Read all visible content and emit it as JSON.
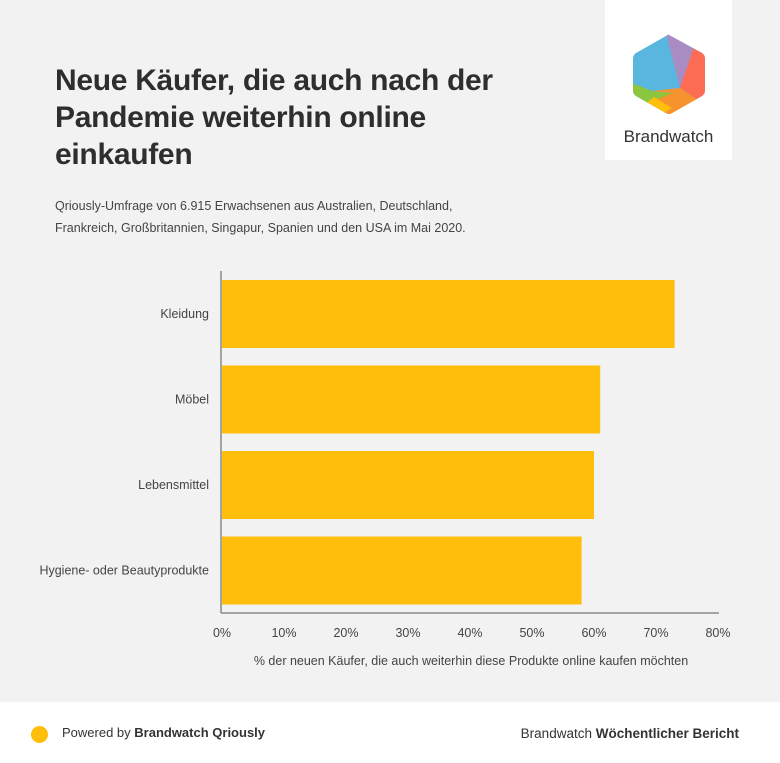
{
  "header": {
    "title": "Neue Käufer, die auch nach der Pandemie weiterhin online einkaufen",
    "subtitle": "Qriously-Umfrage von 6.915 Erwachsenen aus Australien, Deutschland, Frankreich, Großbritannien, Singapur, Spanien und den USA im Mai 2020."
  },
  "logo": {
    "text": "Brandwatch",
    "icon": "brandwatch-hexagon-logo"
  },
  "colors": {
    "bar": "#ffbe0b",
    "background": "#f2f2f2",
    "axis": "#888888",
    "accent": "#ffbe0b"
  },
  "chart_data": {
    "type": "bar",
    "orientation": "horizontal",
    "title": "Neue Käufer, die auch nach der Pandemie weiterhin online einkaufen",
    "categories": [
      "Kleidung",
      "Möbel",
      "Lebensmittel",
      "Hygiene- oder Beautyprodukte"
    ],
    "values": [
      73,
      61,
      60,
      58
    ],
    "unit": "%",
    "xlabel": "% der neuen Käufer, die auch weiterhin diese Produkte online kaufen möchten",
    "ylabel": "",
    "xlim": [
      0,
      80
    ],
    "xticks": [
      "0%",
      "10%",
      "20%",
      "30%",
      "40%",
      "50%",
      "60%",
      "70%",
      "80%"
    ],
    "grid": false,
    "legend": "none"
  },
  "footer": {
    "left_prefix": "Powered by ",
    "left_bold": "Brandwatch Qriously",
    "right_prefix": "Brandwatch ",
    "right_bold": "Wöchentlicher Bericht"
  }
}
